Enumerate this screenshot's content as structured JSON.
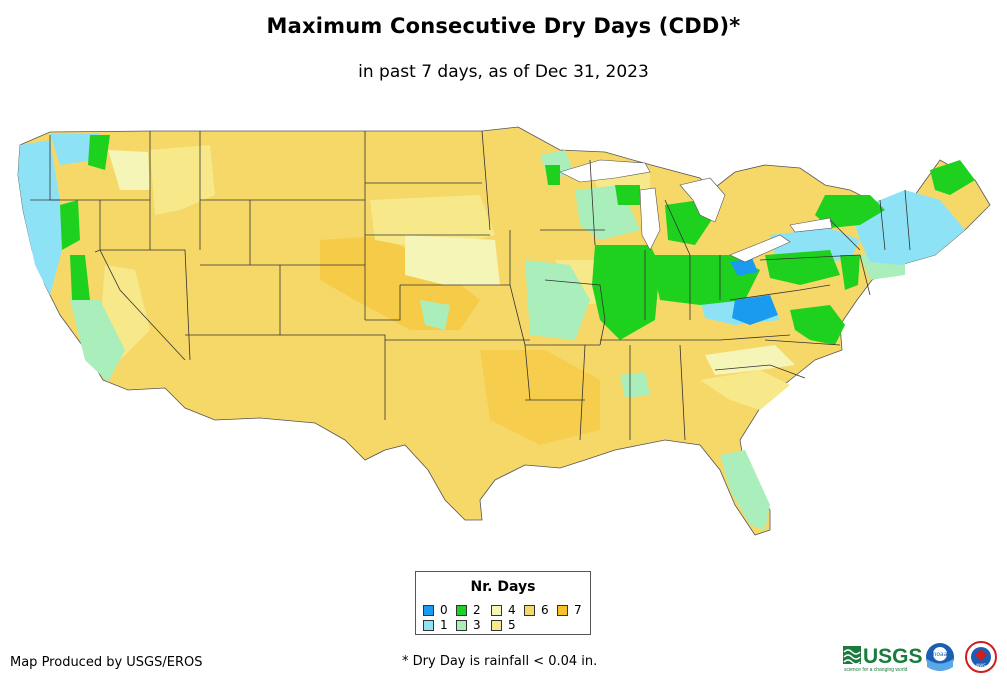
{
  "title": "Maximum Consecutive Dry Days (CDD)*",
  "subtitle": "in past 7 days, as of Dec 31, 2023",
  "legend": {
    "title": "Nr. Days",
    "items": [
      {
        "label": "0",
        "color": "#1a9bf0"
      },
      {
        "label": "1",
        "color": "#8ee2f5"
      },
      {
        "label": "2",
        "color": "#1fd11f"
      },
      {
        "label": "3",
        "color": "#a9eebb"
      },
      {
        "label": "4",
        "color": "#f6f5b8"
      },
      {
        "label": "5",
        "color": "#f7e88a"
      },
      {
        "label": "6",
        "color": "#f6d869"
      },
      {
        "label": "7",
        "color": "#f6c12b"
      }
    ]
  },
  "credit": "Map Produced by USGS/EROS",
  "footnote": "* Dry Day is rainfall < 0.04 in.",
  "logos": {
    "usgs": "USGS",
    "usgs_tagline": "science for a changing world",
    "noaa": "noaa",
    "nws": "NWS"
  }
}
